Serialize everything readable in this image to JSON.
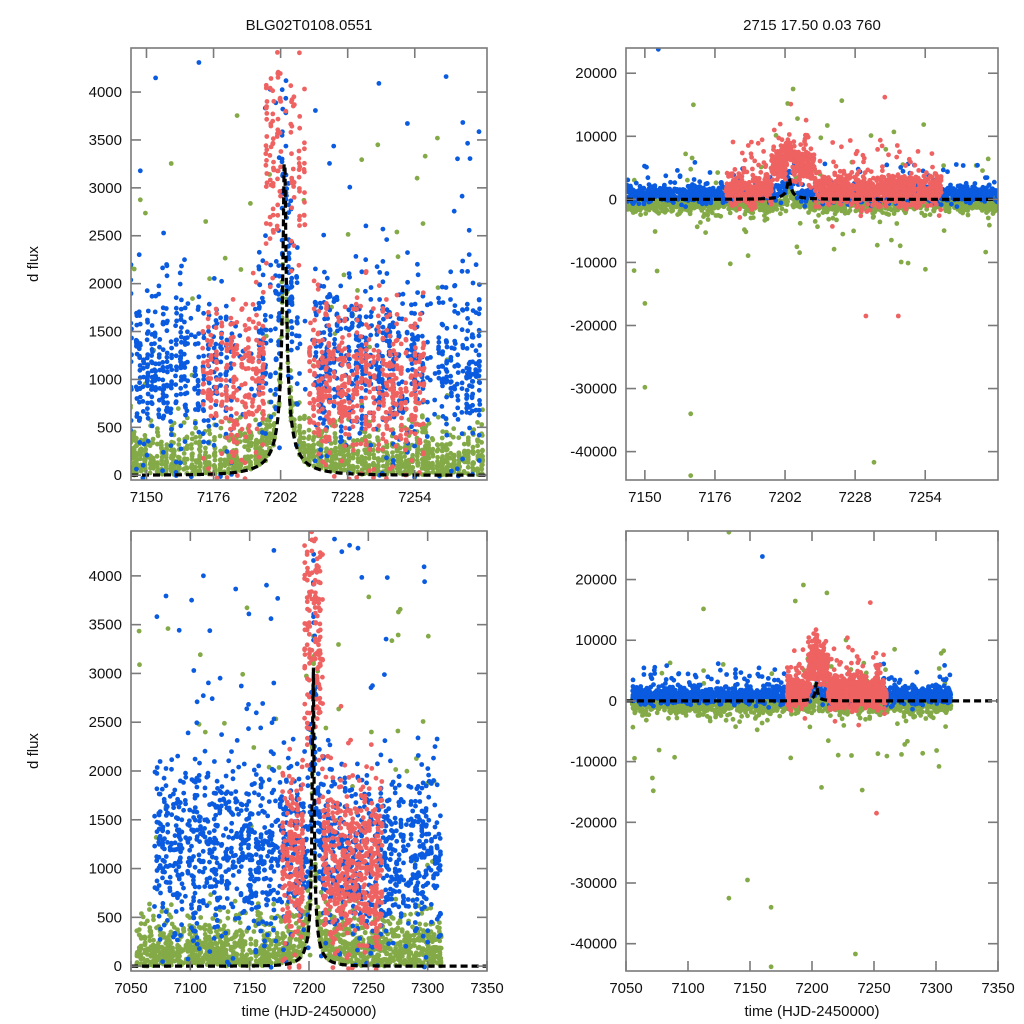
{
  "figure": {
    "title_left": "BLG02T0108.0551",
    "title_right": "2715  17.50  0.03  760"
  },
  "colors": {
    "series_blue": "#0a5be0",
    "series_red": "#ef6262",
    "series_green": "#84aa48",
    "model": "#000000",
    "frame": "#7a7a7a"
  },
  "chart_data": [
    {
      "id": "top-left",
      "type": "scatter",
      "title": "BLG02T0108.0551",
      "xlabel": "",
      "ylabel": "d flux",
      "xlim": [
        7144,
        7282
      ],
      "ylim": [
        -50,
        4460
      ],
      "xticks": [
        7150,
        7176,
        7202,
        7228,
        7254
      ],
      "yticks": [
        0,
        500,
        1000,
        1500,
        2000,
        2500,
        3000,
        3500,
        4000
      ],
      "model": {
        "t0": 7203.5,
        "tE": 17.5,
        "u0": 0.03,
        "peak": 3400,
        "style": "dashed"
      },
      "series": [
        {
          "name": "blue",
          "t_range": [
            7144,
            7280
          ],
          "baseline": 1150,
          "scatter": 450,
          "gaps": [
            [
              7166,
              7168
            ],
            [
              7183,
              7193
            ],
            [
              7209,
              7215
            ],
            [
              7259,
              7263
            ]
          ]
        },
        {
          "name": "red",
          "t_range": [
            7172,
            7258
          ],
          "baseline": 950,
          "scatter": 420
        },
        {
          "name": "green",
          "t_range": [
            7144,
            7282
          ],
          "baseline": 220,
          "scatter": 260
        }
      ]
    },
    {
      "id": "top-right",
      "type": "scatter",
      "title": "2715  17.50  0.03  760",
      "xlabel": "",
      "ylabel": "",
      "xlim": [
        7143,
        7281
      ],
      "ylim": [
        -44500,
        24000
      ],
      "xticks": [
        7150,
        7176,
        7202,
        7228,
        7254
      ],
      "yticks": [
        -40000,
        -30000,
        -20000,
        -10000,
        0,
        10000,
        20000
      ],
      "model": {
        "t0": 7203.5,
        "tE": 17.5,
        "u0": 0.03,
        "peak": 3400,
        "style": "dashed"
      },
      "outliers": [
        {
          "t": 7146,
          "v": -11300,
          "s": "green"
        },
        {
          "t": 7150,
          "v": -16500,
          "s": "green"
        },
        {
          "t": 7150,
          "v": -29800,
          "s": "green"
        },
        {
          "t": 7167,
          "v": -34000,
          "s": "green"
        },
        {
          "t": 7167,
          "v": -43800,
          "s": "green"
        },
        {
          "t": 7235,
          "v": -41700,
          "s": "green"
        },
        {
          "t": 7155,
          "v": 23800,
          "s": "blue"
        },
        {
          "t": 7168,
          "v": 15000,
          "s": "green"
        },
        {
          "t": 7205,
          "v": 17500,
          "s": "green"
        },
        {
          "t": 7203,
          "v": 15200,
          "s": "green"
        },
        {
          "t": 7198,
          "v": 11000,
          "s": "red"
        },
        {
          "t": 7239,
          "v": 16200,
          "s": "red"
        },
        {
          "t": 7232,
          "v": -18500,
          "s": "red"
        },
        {
          "t": 7244,
          "v": -18500,
          "s": "red"
        }
      ]
    },
    {
      "id": "bottom-left",
      "type": "scatter",
      "title": "",
      "xlabel": "time (HJD-2450000)",
      "ylabel": "d flux",
      "xlim": [
        7050,
        7350
      ],
      "ylim": [
        -50,
        4460
      ],
      "xticks": [
        7050,
        7100,
        7150,
        7200,
        7250,
        7300,
        7350
      ],
      "yticks": [
        0,
        500,
        1000,
        1500,
        2000,
        2500,
        3000,
        3500,
        4000
      ],
      "model": {
        "t0": 7203.5,
        "tE": 17.5,
        "u0": 0.03,
        "peak": 3400,
        "style": "dashed"
      },
      "series": [
        {
          "name": "blue",
          "t_range": [
            7070,
            7312
          ],
          "baseline": 1150,
          "scatter": 480
        },
        {
          "name": "red",
          "t_range": [
            7178,
            7262
          ],
          "baseline": 1000,
          "scatter": 450
        },
        {
          "name": "green",
          "t_range": [
            7055,
            7312
          ],
          "baseline": 230,
          "scatter": 270
        }
      ]
    },
    {
      "id": "bottom-right",
      "type": "scatter",
      "title": "",
      "xlabel": "time (HJD-2450000)",
      "ylabel": "",
      "xlim": [
        7050,
        7350
      ],
      "ylim": [
        -44500,
        28000
      ],
      "xticks": [
        7050,
        7100,
        7150,
        7200,
        7250,
        7300,
        7350
      ],
      "yticks": [
        -40000,
        -30000,
        -20000,
        -10000,
        0,
        10000,
        20000
      ],
      "model": {
        "t0": 7203.5,
        "tE": 17.5,
        "u0": 0.03,
        "peak": 3400,
        "style": "dashed"
      },
      "outliers": [
        {
          "t": 7072,
          "v": -14800,
          "s": "green"
        },
        {
          "t": 7133,
          "v": -32500,
          "s": "green"
        },
        {
          "t": 7148,
          "v": -29500,
          "s": "green"
        },
        {
          "t": 7167,
          "v": -34000,
          "s": "green"
        },
        {
          "t": 7167,
          "v": -43800,
          "s": "green"
        },
        {
          "t": 7235,
          "v": -41700,
          "s": "green"
        },
        {
          "t": 7133,
          "v": 27800,
          "s": "green"
        },
        {
          "t": 7160,
          "v": 23800,
          "s": "blue"
        },
        {
          "t": 7212,
          "v": 17800,
          "s": "green"
        },
        {
          "t": 7247,
          "v": 16200,
          "s": "red"
        },
        {
          "t": 7252,
          "v": -18500,
          "s": "red"
        }
      ]
    }
  ]
}
